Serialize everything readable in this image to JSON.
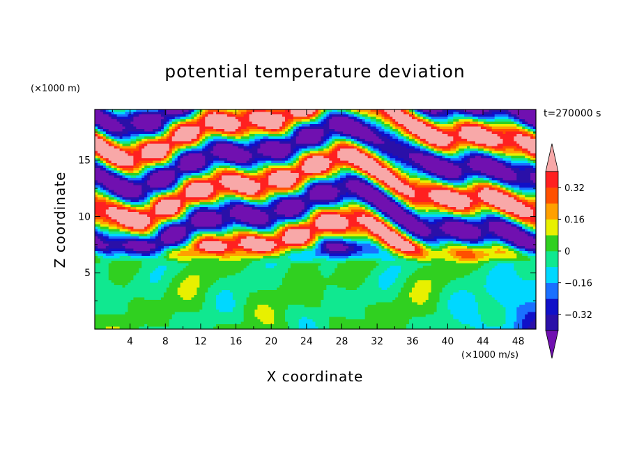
{
  "chart_data": {
    "type": "heatmap",
    "title": "potential temperature deviation",
    "xlabel": "X coordinate",
    "ylabel": "Z coordinate",
    "x_unit": "(×1000 m/s)",
    "y_unit": "(×1000 m)",
    "time_label": "t=270000 s",
    "xlim": [
      0,
      50
    ],
    "ylim": [
      0,
      19.5
    ],
    "x_ticks": [
      4,
      8,
      12,
      16,
      20,
      24,
      28,
      32,
      36,
      40,
      44,
      48
    ],
    "y_ticks": [
      5,
      10,
      15
    ],
    "colorbar": {
      "levels": [
        -0.4,
        -0.32,
        -0.24,
        -0.16,
        -0.08,
        0,
        0.08,
        0.16,
        0.24,
        0.32,
        0.4
      ],
      "labels": [
        {
          "value": 0.32,
          "text": "0.32"
        },
        {
          "value": 0.16,
          "text": "0.16"
        },
        {
          "value": 0,
          "text": "0"
        },
        {
          "value": -0.16,
          "text": "−0.16"
        },
        {
          "value": -0.32,
          "text": "−0.32"
        }
      ],
      "colors": [
        "#7010b0",
        "#2a10a8",
        "#1010c8",
        "#1a70ff",
        "#00d8ff",
        "#10e890",
        "#30d020",
        "#e8f000",
        "#ffa000",
        "#ff5000",
        "#ff2020",
        "#f8a8a8"
      ],
      "extend": "both"
    }
  }
}
